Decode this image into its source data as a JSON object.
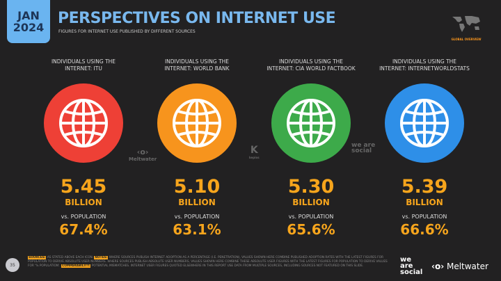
{
  "header": {
    "date_month": "JAN",
    "date_year": "2024",
    "title": "PERSPECTIVES ON INTERNET USE",
    "subtitle": "FIGURES FOR INTERNET USE PUBLISHED BY DIFFERENT SOURCES",
    "badge": "GLOBAL OVERVIEW"
  },
  "columns": [
    {
      "label1": "INDIVIDUALS USING THE",
      "label2": "INTERNET: ITU",
      "value": "5.45",
      "unit": "BILLION",
      "vs": "vs. POPULATION",
      "pct": "67.4%",
      "color": "#ee4036",
      "icon": "globe-icon"
    },
    {
      "label1": "INDIVIDUALS USING THE",
      "label2": "INTERNET: WORLD BANK",
      "value": "5.10",
      "unit": "BILLION",
      "vs": "vs. POPULATION",
      "pct": "63.1%",
      "color": "#f7941d",
      "icon": "globe-icon"
    },
    {
      "label1": "INDIVIDUALS USING THE",
      "label2": "INTERNET: CIA WORLD FACTBOOK",
      "value": "5.30",
      "unit": "BILLION",
      "vs": "vs. POPULATION",
      "pct": "65.6%",
      "color": "#3daa4a",
      "icon": "globe-icon"
    },
    {
      "label1": "INDIVIDUALS USING THE",
      "label2": "INTERNET: INTERNETWORLDSTATS",
      "value": "5.39",
      "unit": "BILLION",
      "vs": "vs. POPULATION",
      "pct": "66.6%",
      "color": "#2e8fe8",
      "icon": "globe-icon"
    }
  ],
  "watermarks": {
    "meltwater": "Meltwater",
    "kepios": "kepios",
    "wearesocial": "we are social"
  },
  "footer": {
    "page": "35",
    "sources_label": "SOURCES:",
    "sources": "AS STATED ABOVE EACH ICON.",
    "notes_label": "NOTES:",
    "notes": "WHERE SOURCES PUBLISH INTERNET ADOPTION AS A PERCENTAGE (I.E. PENETRATION), VALUES SHOWN HERE COMBINE PUBLISHED ADOPTION RATES WITH THE LATEST FIGURES FOR POPULATION TO DERIVE ABSOLUTE USER NUMBERS. WHERE SOURCES PUBLISH ABSOLUTE USER NUMBERS, VALUES SHOWN HERE COMBINE THESE ABSOLUTE USER FIGURES WITH THE LATEST FIGURES FOR POPULATION TO DERIVE VALUES FOR '% POPULATION'.",
    "comparability_label": "COMPARABILITY:",
    "comparability": "POTENTIAL MISMATCHES. INTERNET USER FIGURES QUOTED ELSEWHERE IN THIS REPORT USE DATA FROM MULTIPLE SOURCES, INCLUDING SOURCES NOT FEATURED ON THIS SLIDE.",
    "brand1": "we are social",
    "brand2": "Meltwater"
  }
}
